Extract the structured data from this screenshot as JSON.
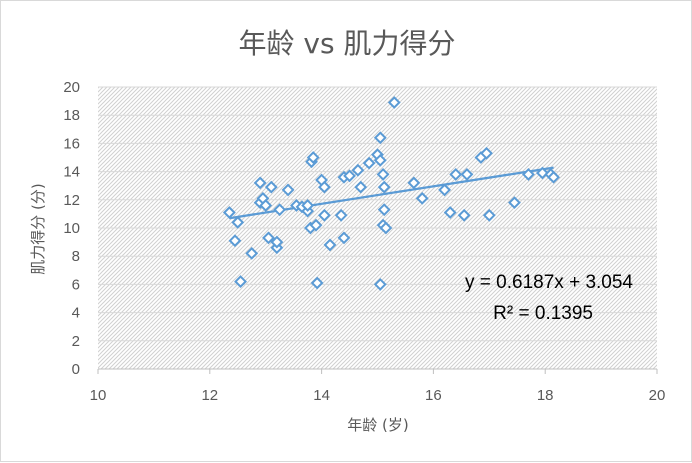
{
  "chart_data": {
    "type": "scatter",
    "title": "年龄 vs 肌力得分",
    "xlabel": "年龄 (岁)",
    "ylabel": "肌力得分 (分)",
    "xlim": [
      10,
      20
    ],
    "ylim": [
      0,
      20
    ],
    "x_ticks": [
      "10",
      "12",
      "14",
      "16",
      "18",
      "20"
    ],
    "y_ticks": [
      "0",
      "2",
      "4",
      "6",
      "8",
      "10",
      "12",
      "14",
      "16",
      "18",
      "20"
    ],
    "grid": "horizontal",
    "legend": "none",
    "marker": "diamond-hollow",
    "colors": {
      "series": "#5b9bd5",
      "trendline": "#5b9bd5",
      "grid": "#d9d9d9",
      "plot_pattern": "#d0d0d0"
    },
    "series": [
      {
        "points": [
          [
            12.35,
            11.1
          ],
          [
            12.45,
            9.1
          ],
          [
            12.5,
            10.4
          ],
          [
            12.55,
            6.2
          ],
          [
            12.75,
            8.2
          ],
          [
            12.9,
            11.8
          ],
          [
            12.9,
            13.2
          ],
          [
            12.95,
            12.1
          ],
          [
            13.0,
            11.6
          ],
          [
            13.05,
            9.3
          ],
          [
            13.1,
            12.9
          ],
          [
            13.2,
            8.6
          ],
          [
            13.2,
            9.0
          ],
          [
            13.25,
            11.3
          ],
          [
            13.4,
            12.7
          ],
          [
            13.55,
            11.6
          ],
          [
            13.65,
            11.5
          ],
          [
            13.75,
            11.2
          ],
          [
            13.75,
            11.6
          ],
          [
            13.8,
            10.0
          ],
          [
            13.82,
            14.7
          ],
          [
            13.85,
            15.0
          ],
          [
            13.9,
            10.2
          ],
          [
            13.92,
            6.1
          ],
          [
            14.0,
            13.4
          ],
          [
            14.05,
            12.9
          ],
          [
            14.05,
            10.9
          ],
          [
            14.15,
            8.8
          ],
          [
            14.35,
            10.9
          ],
          [
            14.4,
            9.3
          ],
          [
            14.4,
            13.6
          ],
          [
            14.5,
            13.7
          ],
          [
            14.65,
            14.1
          ],
          [
            14.7,
            12.9
          ],
          [
            14.85,
            14.6
          ],
          [
            15.0,
            15.2
          ],
          [
            15.05,
            16.4
          ],
          [
            15.05,
            14.8
          ],
          [
            15.05,
            6.0
          ],
          [
            15.1,
            10.2
          ],
          [
            15.1,
            13.8
          ],
          [
            15.12,
            12.9
          ],
          [
            15.12,
            11.3
          ],
          [
            15.15,
            10.0
          ],
          [
            15.3,
            18.9
          ],
          [
            15.65,
            13.2
          ],
          [
            15.8,
            12.1
          ],
          [
            16.2,
            12.7
          ],
          [
            16.3,
            11.1
          ],
          [
            16.4,
            13.8
          ],
          [
            16.55,
            10.9
          ],
          [
            16.6,
            13.8
          ],
          [
            16.85,
            15.0
          ],
          [
            16.95,
            15.3
          ],
          [
            17.0,
            10.9
          ],
          [
            17.45,
            11.8
          ],
          [
            17.7,
            13.8
          ],
          [
            17.95,
            13.9
          ],
          [
            18.1,
            13.8
          ],
          [
            18.15,
            13.6
          ]
        ]
      }
    ],
    "trendline": {
      "type": "linear",
      "slope": 0.6187,
      "intercept": 3.054,
      "x_range": [
        12.35,
        18.15
      ],
      "equation_label": "y = 0.6187x + 3.054",
      "r2_label": "R² = 0.1395"
    }
  }
}
